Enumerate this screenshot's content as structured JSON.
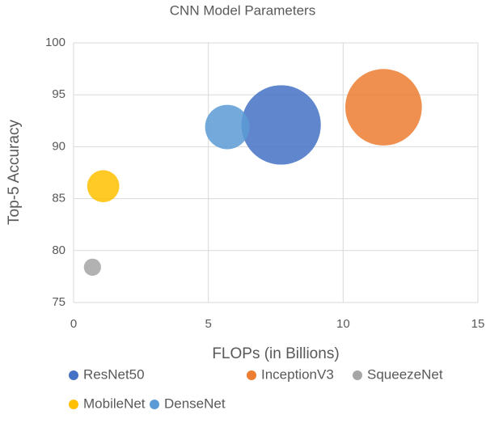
{
  "chart_data": {
    "type": "bubble",
    "title": "CNN Model Parameters",
    "xlabel": "FLOPs (in Billions)",
    "ylabel": "Top-5 Accuracy",
    "xlim": [
      0,
      15
    ],
    "xticks": [
      0,
      5,
      10,
      15
    ],
    "ylim": [
      75,
      100
    ],
    "yticks": [
      75,
      80,
      85,
      90,
      95,
      100
    ],
    "grid": true,
    "legend": "bottom",
    "series": [
      {
        "name": "ResNet50",
        "color": "#4472c4",
        "x": [
          7.7
        ],
        "y": [
          92.1
        ],
        "size": [
          25.6
        ]
      },
      {
        "name": "InceptionV3",
        "color": "#ed7d31",
        "x": [
          11.5
        ],
        "y": [
          93.8
        ],
        "size": [
          23.8
        ]
      },
      {
        "name": "SqueezeNet",
        "color": "#a5a5a5",
        "x": [
          0.7
        ],
        "y": [
          78.4
        ],
        "size": [
          1.2
        ]
      },
      {
        "name": "MobileNet",
        "color": "#ffc000",
        "x": [
          1.1
        ],
        "y": [
          86.2
        ],
        "size": [
          4.2
        ]
      },
      {
        "name": "DenseNet",
        "color": "#5b9bd5",
        "x": [
          5.7
        ],
        "y": [
          91.9
        ],
        "size": [
          8
        ]
      }
    ]
  }
}
